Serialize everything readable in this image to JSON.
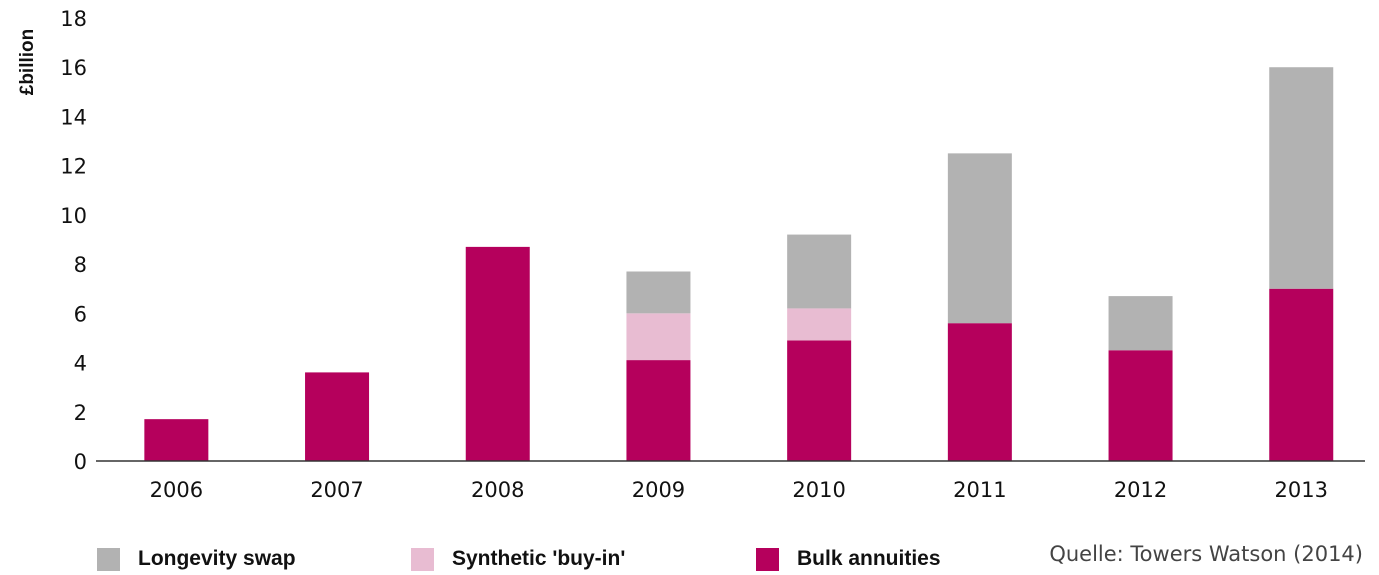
{
  "chart_data": {
    "type": "bar",
    "stacked": true,
    "ylabel": "£billion",
    "xlabel": "",
    "ylim": [
      0,
      18
    ],
    "yticks": [
      0,
      2,
      4,
      6,
      8,
      10,
      12,
      14,
      16,
      18
    ],
    "categories": [
      "2006",
      "2007",
      "2008",
      "2009",
      "2010",
      "2011",
      "2012",
      "2013"
    ],
    "series": [
      {
        "name": "Bulk annuities",
        "color": "#b5005c",
        "values": [
          1.7,
          3.6,
          8.7,
          4.1,
          4.9,
          5.6,
          4.5,
          7.0
        ]
      },
      {
        "name": "Synthetic 'buy-in'",
        "color": "#e8bcd2",
        "values": [
          0,
          0,
          0,
          1.9,
          1.3,
          0,
          0,
          0
        ]
      },
      {
        "name": "Longevity swap",
        "color": "#b2b2b2",
        "values": [
          0,
          0,
          0,
          1.7,
          3.0,
          6.9,
          2.2,
          9.0
        ]
      }
    ],
    "legend": [
      {
        "label": "Longevity swap",
        "color": "#b2b2b2"
      },
      {
        "label": "Synthetic 'buy-in'",
        "color": "#e8bcd2"
      },
      {
        "label": "Bulk annuities",
        "color": "#b5005c"
      }
    ],
    "legend_position": "bottom",
    "grid": false,
    "source": "Quelle: Towers Watson (2014)"
  }
}
